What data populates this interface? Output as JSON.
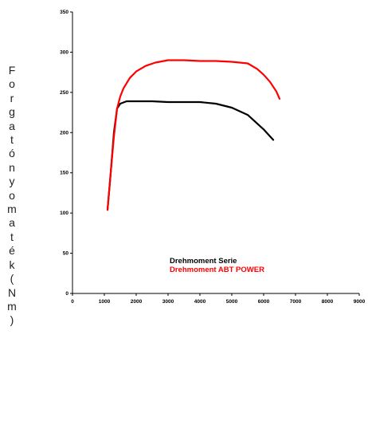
{
  "chart_data": {
    "type": "line",
    "title": "",
    "xlabel": "",
    "ylabel": "Forgatónyomaték(Nm)",
    "xlim": [
      0,
      9000
    ],
    "ylim": [
      0,
      350
    ],
    "x_ticks": [
      "0",
      "1000",
      "2000",
      "3000",
      "4000",
      "5000",
      "6000",
      "7000",
      "8000",
      "9000"
    ],
    "y_ticks": [
      "0",
      "50",
      "100",
      "150",
      "200",
      "250",
      "300",
      "350"
    ],
    "grid": false,
    "legend_position": "bottom-right",
    "series": [
      {
        "name": "Drehmoment Serie",
        "color": "#000000",
        "x": [
          1100,
          1200,
          1300,
          1400,
          1500,
          1700,
          2000,
          2500,
          3000,
          3500,
          4000,
          4500,
          5000,
          5500,
          6000,
          6300
        ],
        "y": [
          104,
          150,
          200,
          230,
          236,
          239,
          239,
          239,
          238,
          238,
          238,
          236,
          231,
          222,
          204,
          191
        ]
      },
      {
        "name": "Drehmoment ABT POWER",
        "color": "#ff0000",
        "x": [
          1100,
          1200,
          1300,
          1400,
          1500,
          1600,
          1800,
          2000,
          2300,
          2600,
          3000,
          3500,
          4000,
          4500,
          5000,
          5500,
          5800,
          6000,
          6200,
          6400,
          6500
        ],
        "y": [
          104,
          150,
          195,
          230,
          245,
          255,
          268,
          276,
          283,
          287,
          290,
          290,
          289,
          289,
          288,
          286,
          279,
          272,
          263,
          251,
          242
        ]
      }
    ]
  }
}
